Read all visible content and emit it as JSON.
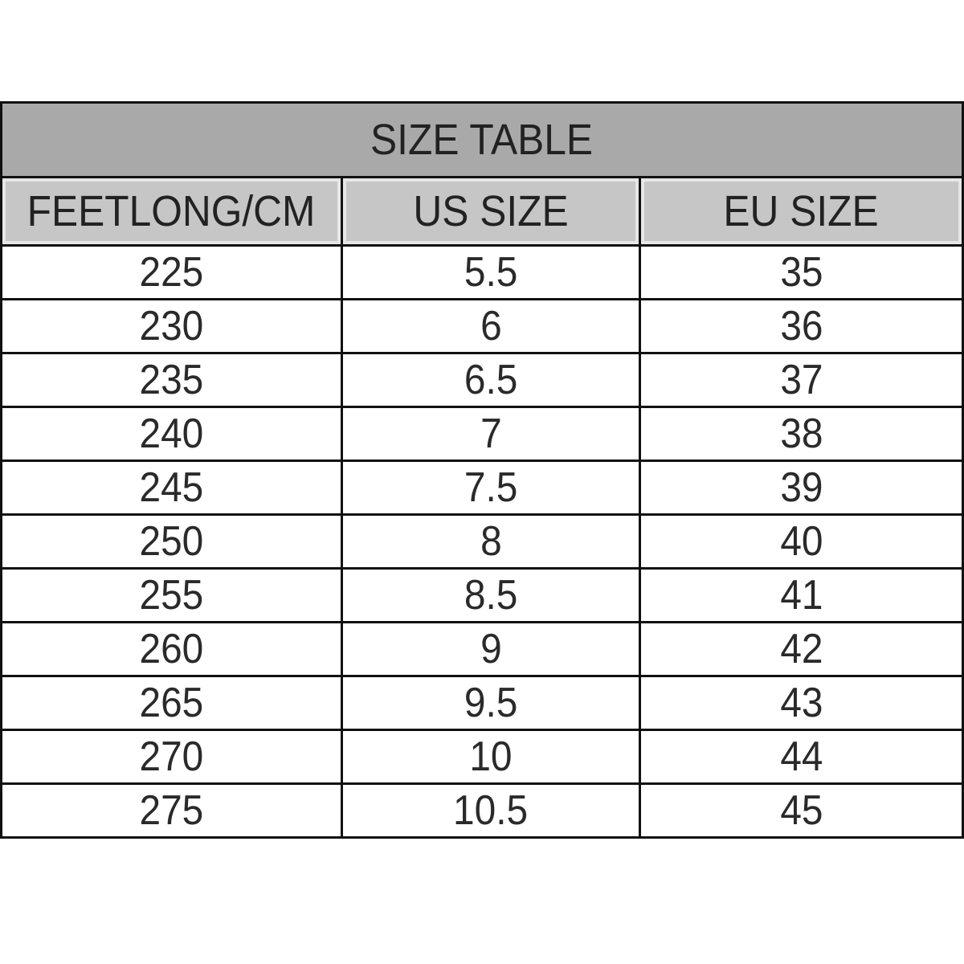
{
  "title": "SIZE TABLE",
  "headers": [
    "FEETLONG/CM",
    "US SIZE",
    "EU SIZE"
  ],
  "rows": [
    [
      "225",
      "5.5",
      "35"
    ],
    [
      "230",
      "6",
      "36"
    ],
    [
      "235",
      "6.5",
      "37"
    ],
    [
      "240",
      "7",
      "38"
    ],
    [
      "245",
      "7.5",
      "39"
    ],
    [
      "250",
      "8",
      "40"
    ],
    [
      "255",
      "8.5",
      "41"
    ],
    [
      "260",
      "9",
      "42"
    ],
    [
      "265",
      "9.5",
      "43"
    ],
    [
      "270",
      "10",
      "44"
    ],
    [
      "275",
      "10.5",
      "45"
    ]
  ],
  "colors": {
    "title_bg": "#a9a9a9",
    "header_bg": "#c6c6c6",
    "border": "#111111"
  }
}
